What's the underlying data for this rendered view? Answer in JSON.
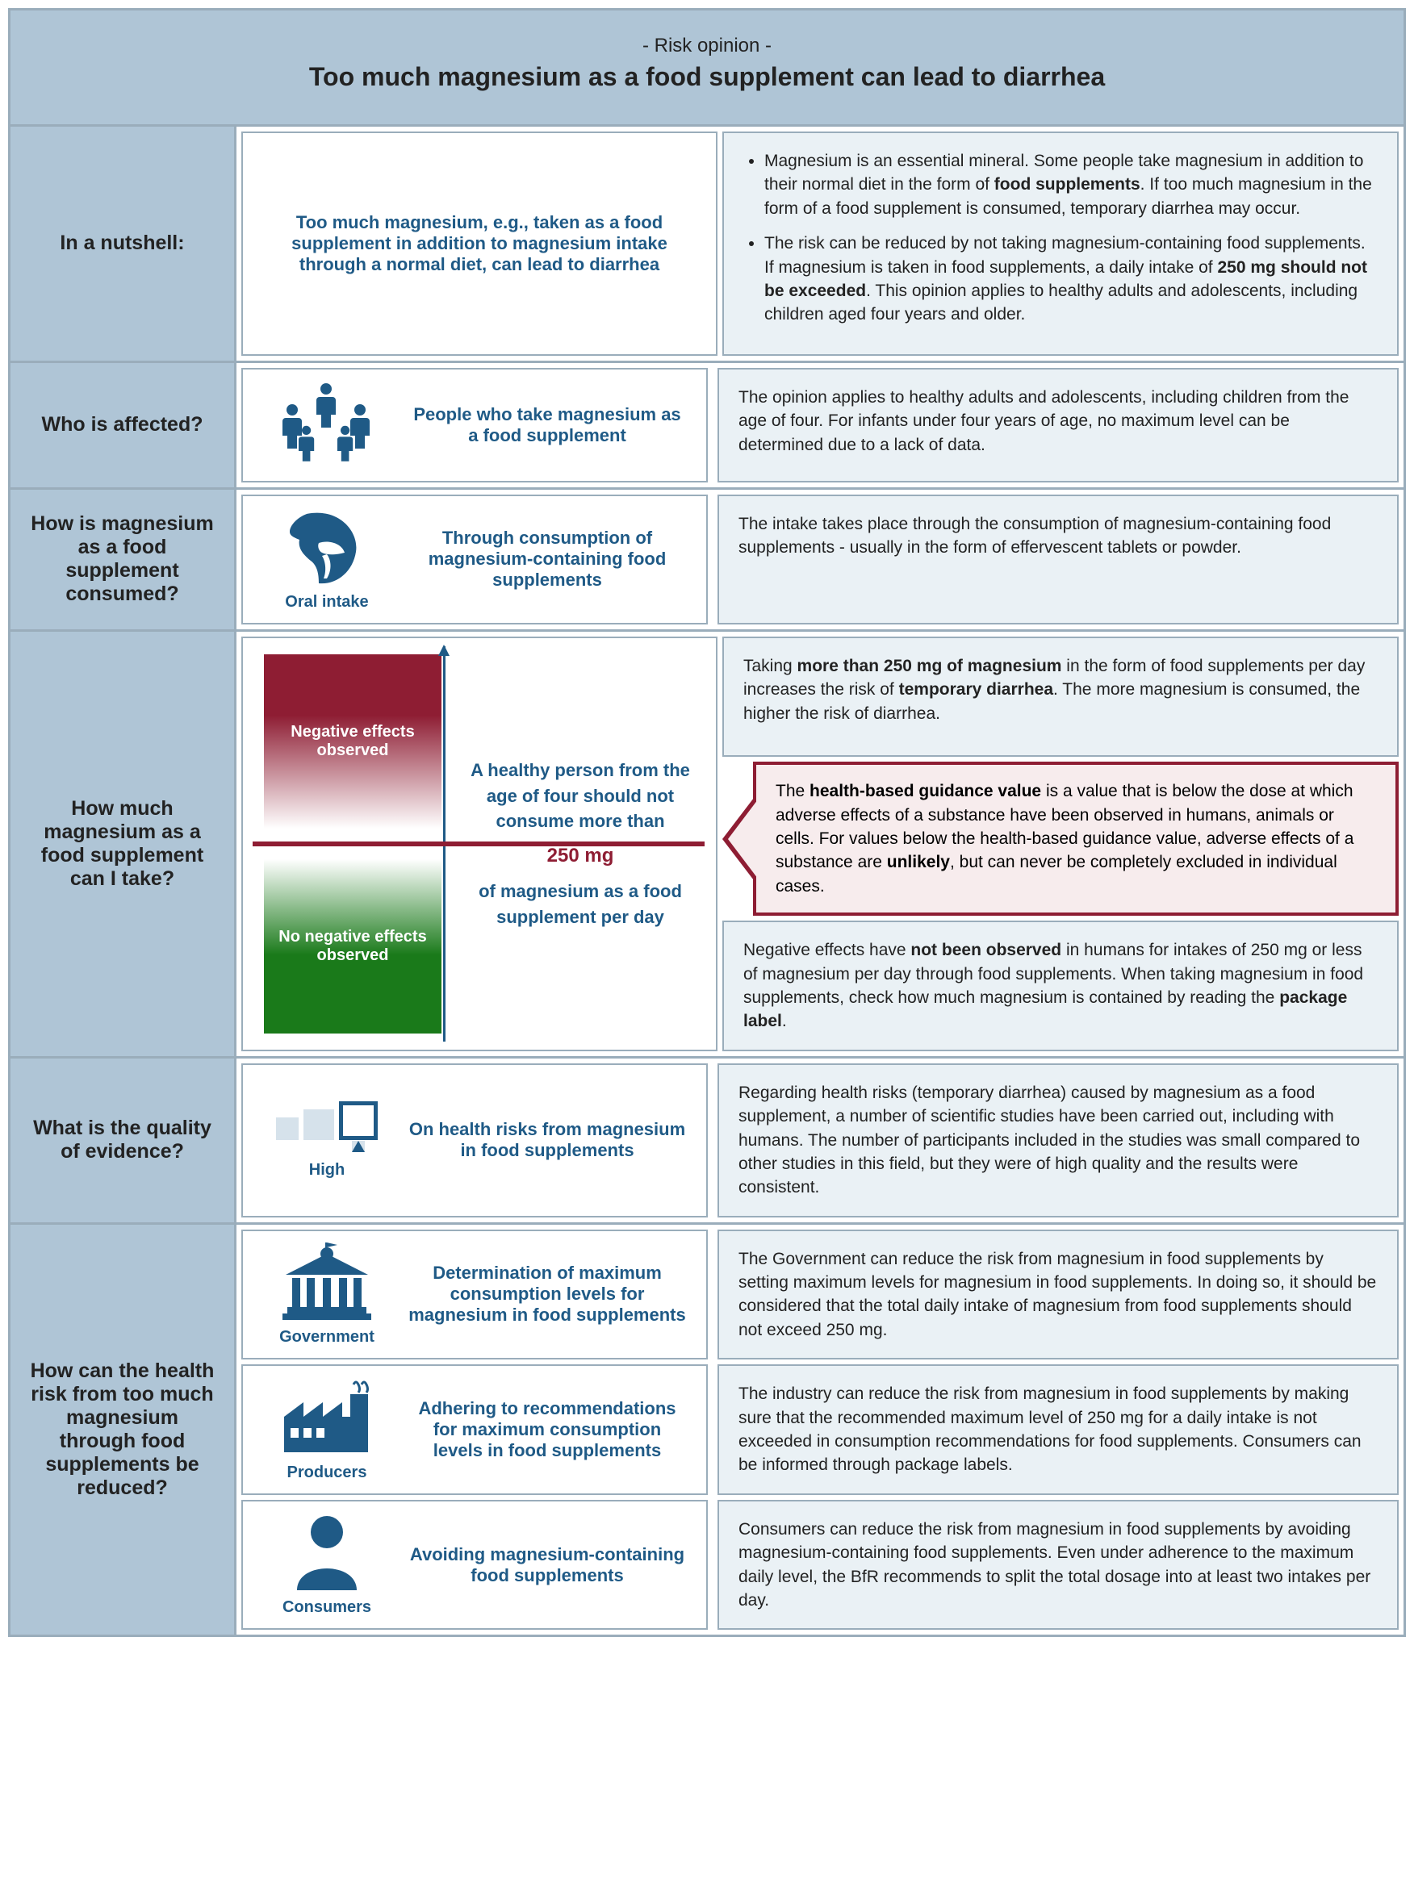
{
  "colors": {
    "band": "#afc5d6",
    "border": "#9aadbb",
    "accent": "#1f5a86",
    "panel": "#eaf1f5",
    "danger": "#8e1d33",
    "safe": "#1a7a1a"
  },
  "header": {
    "kicker": "- Risk opinion -",
    "title": "Too much magnesium as a food supplement can lead to diarrhea"
  },
  "nutshell": {
    "label": "In a nutshell:",
    "mid": "Too much magnesium, e.g., taken as a food supplement in addition to magnesium intake through a normal diet, can lead to diarrhea",
    "bullets": [
      "Magnesium is an essential mineral. Some people take magnesium in addition to their normal diet in the form of <b>food supplements</b>. If too much magnesium in the form of a food supplement is consumed, temporary diarrhea may occur.",
      "The risk can be reduced by not taking magnesium-containing food supplements. If magnesium is taken in food supplements, a daily intake of <b>250 mg should not be exceeded</b>. This opinion applies to healthy adults and adolescents, including children aged four years and older."
    ]
  },
  "who": {
    "label": "Who is affected?",
    "mid": "People who take magnesium as a food supplement",
    "right": "The opinion applies to healthy adults and adolescents, including children from the age of four. For infants under four years of age, no maximum level can be determined due to a lack of data."
  },
  "how_intake": {
    "label": "How is magnesium as a food supplement consumed?",
    "icon_label": "Oral intake",
    "mid": "Through consumption of magnesium-containing food supplements",
    "right": "The intake takes place through the consumption of magnesium-containing food supplements - usually in the form of effervescent tablets or powder."
  },
  "dose": {
    "label": "How much magnesium as a food supplement can I take?",
    "chart": {
      "neg_label": "Negative effects observed",
      "pos_label": "No negative effects observed",
      "threshold_mg": "250 mg",
      "text_top": "A healthy person from the age of four should not consume more than",
      "text_bottom": "of magnesium as a food supplement per day"
    },
    "right_top": "Taking <b>more than 250 mg of magnesium</b> in the form of food supplements per day increases the risk of <b>temporary diarrhea</b>. The more magnesium is consumed, the higher the risk of diarrhea.",
    "callout": "The <b>health-based guidance value</b> is a value that is below the dose at which adverse effects of a substance have been observed in humans, animals or cells. For values below the health-based guidance value, adverse effects of a substance are <b>unlikely</b>, but can never be completely excluded in individual cases.",
    "right_bottom": "Negative effects have <b>not been observed</b> in humans for intakes of 250 mg or less of magnesium per day through food supplements. When taking magnesium in food supplements, check how much magnesium is contained by reading the <b>package label</b>."
  },
  "evidence": {
    "label": "What is the quality of evidence?",
    "icon_label": "High",
    "mid": "On health risks from magnesium in food supplements",
    "right": "Regarding health risks (temporary diarrhea) caused by magnesium as a food supplement, a number of scientific studies have been carried out, including with humans. The number of participants included in the studies was small compared to other studies in this field, but they were of high quality and the results were consistent."
  },
  "reduce": {
    "label": "How can the health risk from too much magnesium through food supplements be reduced?",
    "rows": [
      {
        "actor": "Government",
        "mid": "Determination of maximum consumption levels for magnesium in food supplements",
        "right": "The Government can reduce the risk from magnesium in food supplements by setting maximum levels for magnesium in food supplements. In doing so, it should be considered that the total daily intake of magnesium from food supplements should not exceed 250 mg."
      },
      {
        "actor": "Producers",
        "mid": "Adhering to recommendations for maximum consumption levels in food supplements",
        "right": "The industry can reduce the risk from magnesium in food supplements by making sure that the recommended maximum level of 250 mg for a daily intake is not exceeded in consumption recommendations for food supplements. Consumers can be informed through package labels."
      },
      {
        "actor": "Consumers",
        "mid": "Avoiding magnesium-containing food supplements",
        "right": "Consumers can reduce the risk from magnesium in food supplements by avoiding magnesium-containing food supplements. Even under adherence to the maximum daily level, the BfR recommends to split the total dosage into at least two intakes per day."
      }
    ]
  }
}
